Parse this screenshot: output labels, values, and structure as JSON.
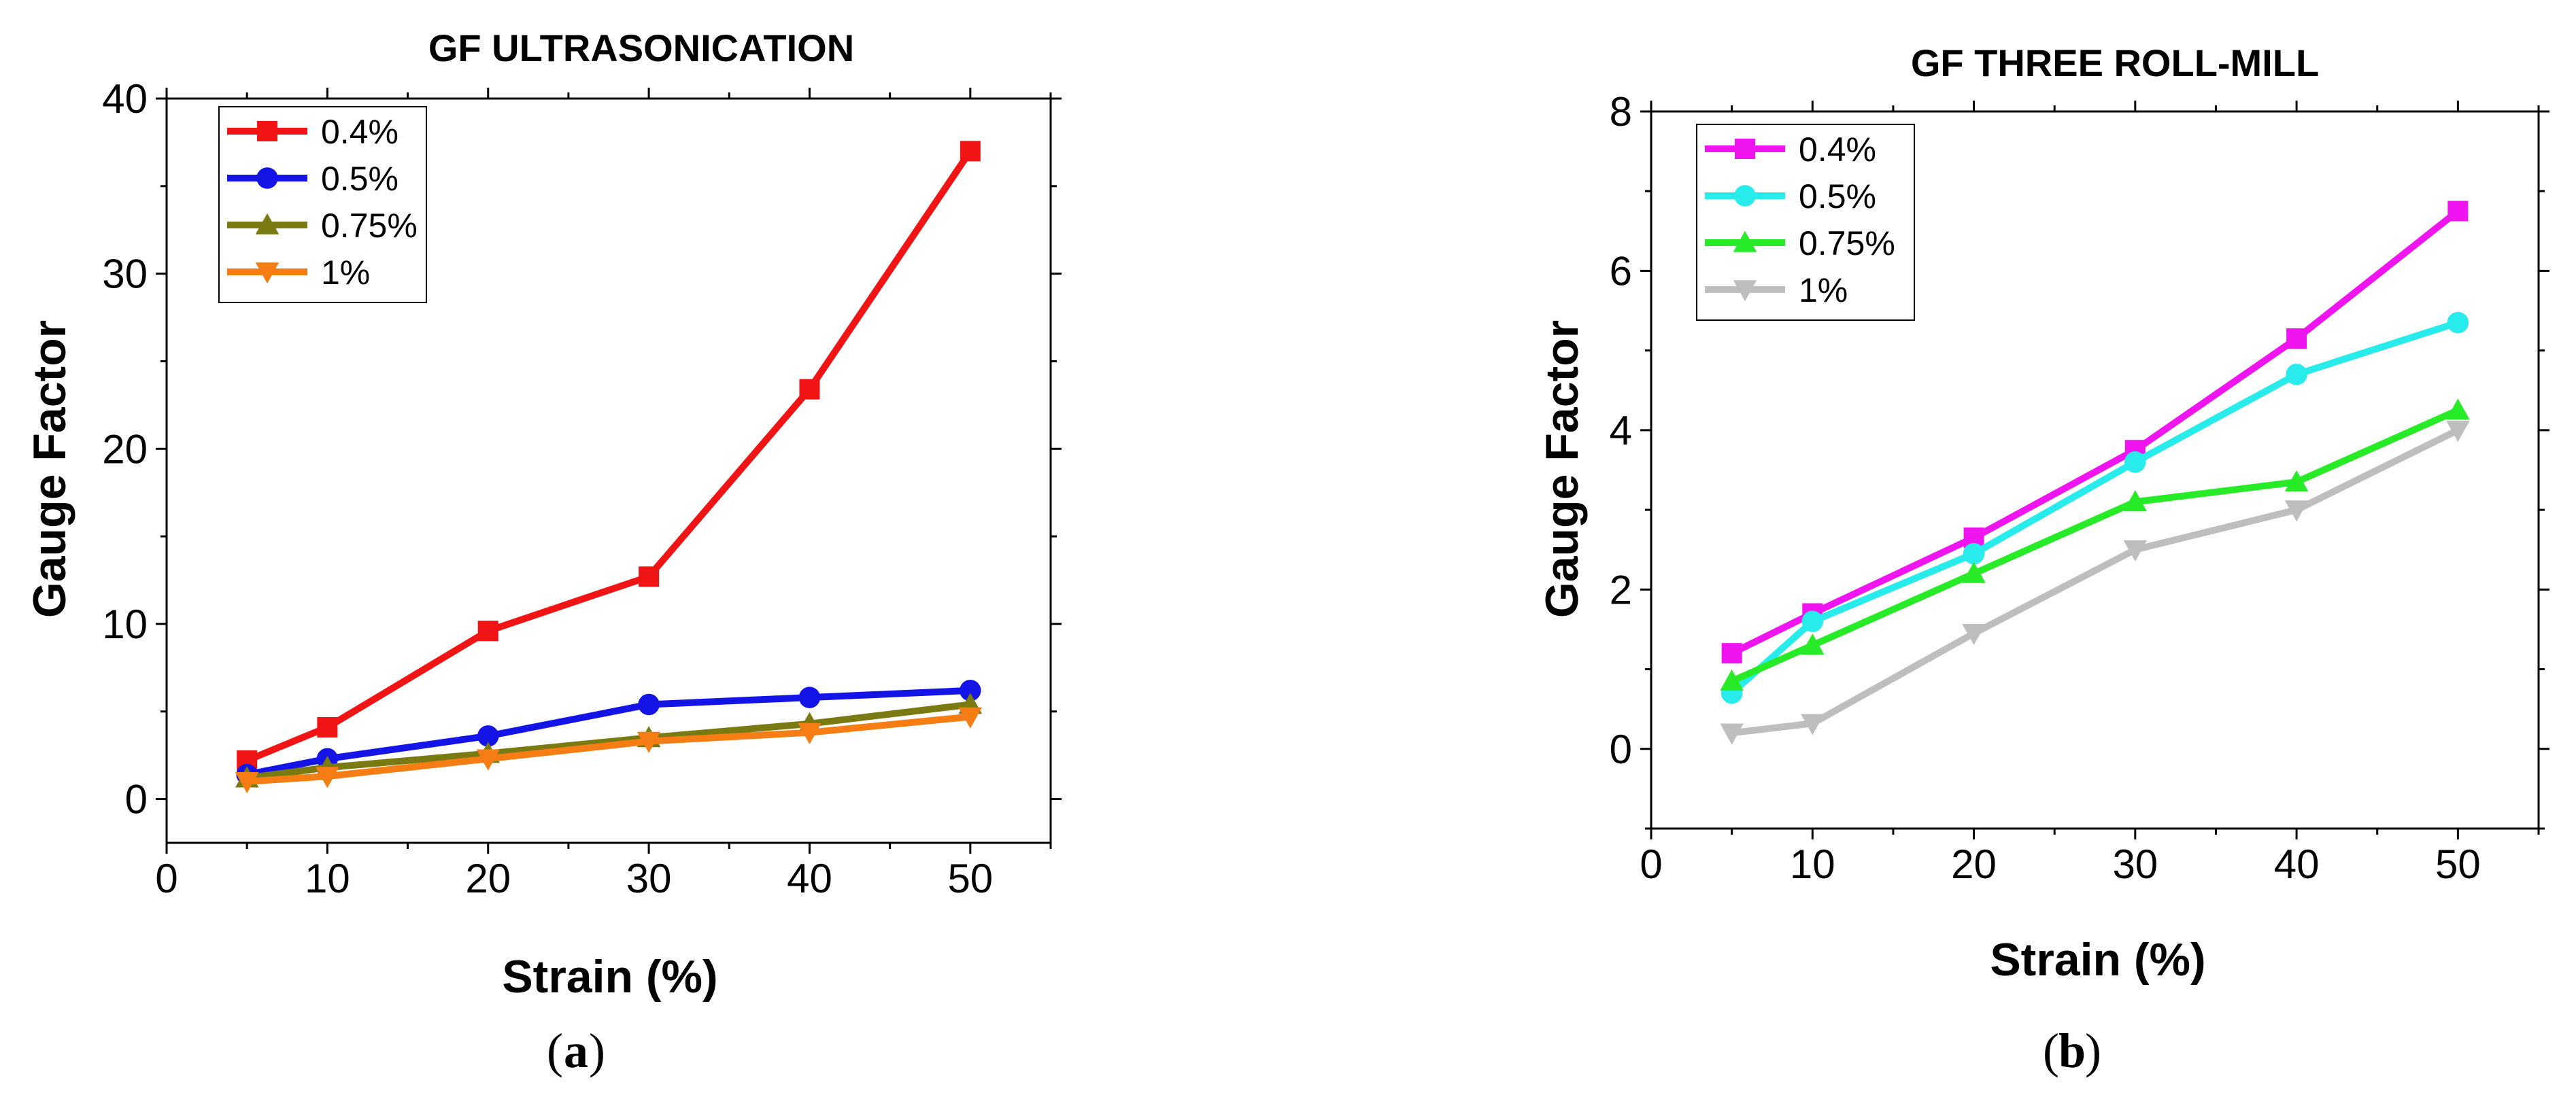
{
  "chart_data": [
    {
      "type": "line",
      "title": "GF ULTRASONICATION",
      "xlabel": "Strain (%)",
      "ylabel": "Gauge Factor",
      "xlim": [
        0,
        55
      ],
      "ylim": [
        -2.5,
        40
      ],
      "xticks": [
        0,
        10,
        20,
        30,
        40,
        50
      ],
      "yticks": [
        0,
        10,
        20,
        30,
        40
      ],
      "caption": "a",
      "legend_position": "top-left",
      "x": [
        5,
        10,
        20,
        30,
        40,
        50
      ],
      "series": [
        {
          "name": "0.4%",
          "color": "#f01414",
          "marker": "square",
          "values": [
            2.2,
            4.1,
            9.6,
            12.7,
            23.4,
            37.0
          ]
        },
        {
          "name": "0.5%",
          "color": "#1414e6",
          "marker": "circle",
          "values": [
            1.4,
            2.3,
            3.6,
            5.4,
            5.8,
            6.2
          ]
        },
        {
          "name": "0.75%",
          "color": "#7a7a12",
          "marker": "triangle-up",
          "values": [
            1.2,
            1.8,
            2.6,
            3.5,
            4.3,
            5.4
          ]
        },
        {
          "name": "1%",
          "color": "#f57d14",
          "marker": "triangle-down",
          "values": [
            1.0,
            1.3,
            2.3,
            3.3,
            3.8,
            4.7
          ]
        }
      ]
    },
    {
      "type": "line",
      "title": "GF THREE ROLL-MILL",
      "xlabel": "Strain (%)",
      "ylabel": "Gauge Factor",
      "xlim": [
        0,
        55
      ],
      "ylim": [
        -1,
        8
      ],
      "xticks": [
        0,
        10,
        20,
        30,
        40,
        50
      ],
      "yticks": [
        0,
        2,
        4,
        6,
        8
      ],
      "caption": "b",
      "legend_position": "top-left",
      "x": [
        5,
        10,
        20,
        30,
        40,
        50
      ],
      "series": [
        {
          "name": "0.4%",
          "color": "#f014f0",
          "marker": "square",
          "values": [
            1.2,
            1.7,
            2.65,
            3.75,
            5.15,
            6.75
          ]
        },
        {
          "name": "0.5%",
          "color": "#28ebeb",
          "marker": "circle",
          "values": [
            0.7,
            1.6,
            2.45,
            3.6,
            4.7,
            5.35
          ]
        },
        {
          "name": "0.75%",
          "color": "#28eb28",
          "marker": "triangle-up",
          "values": [
            0.85,
            1.3,
            2.2,
            3.1,
            3.35,
            4.25
          ]
        },
        {
          "name": "1%",
          "color": "#bebebe",
          "marker": "triangle-down",
          "values": [
            0.2,
            0.32,
            1.45,
            2.5,
            3.0,
            4.0
          ]
        }
      ]
    }
  ]
}
